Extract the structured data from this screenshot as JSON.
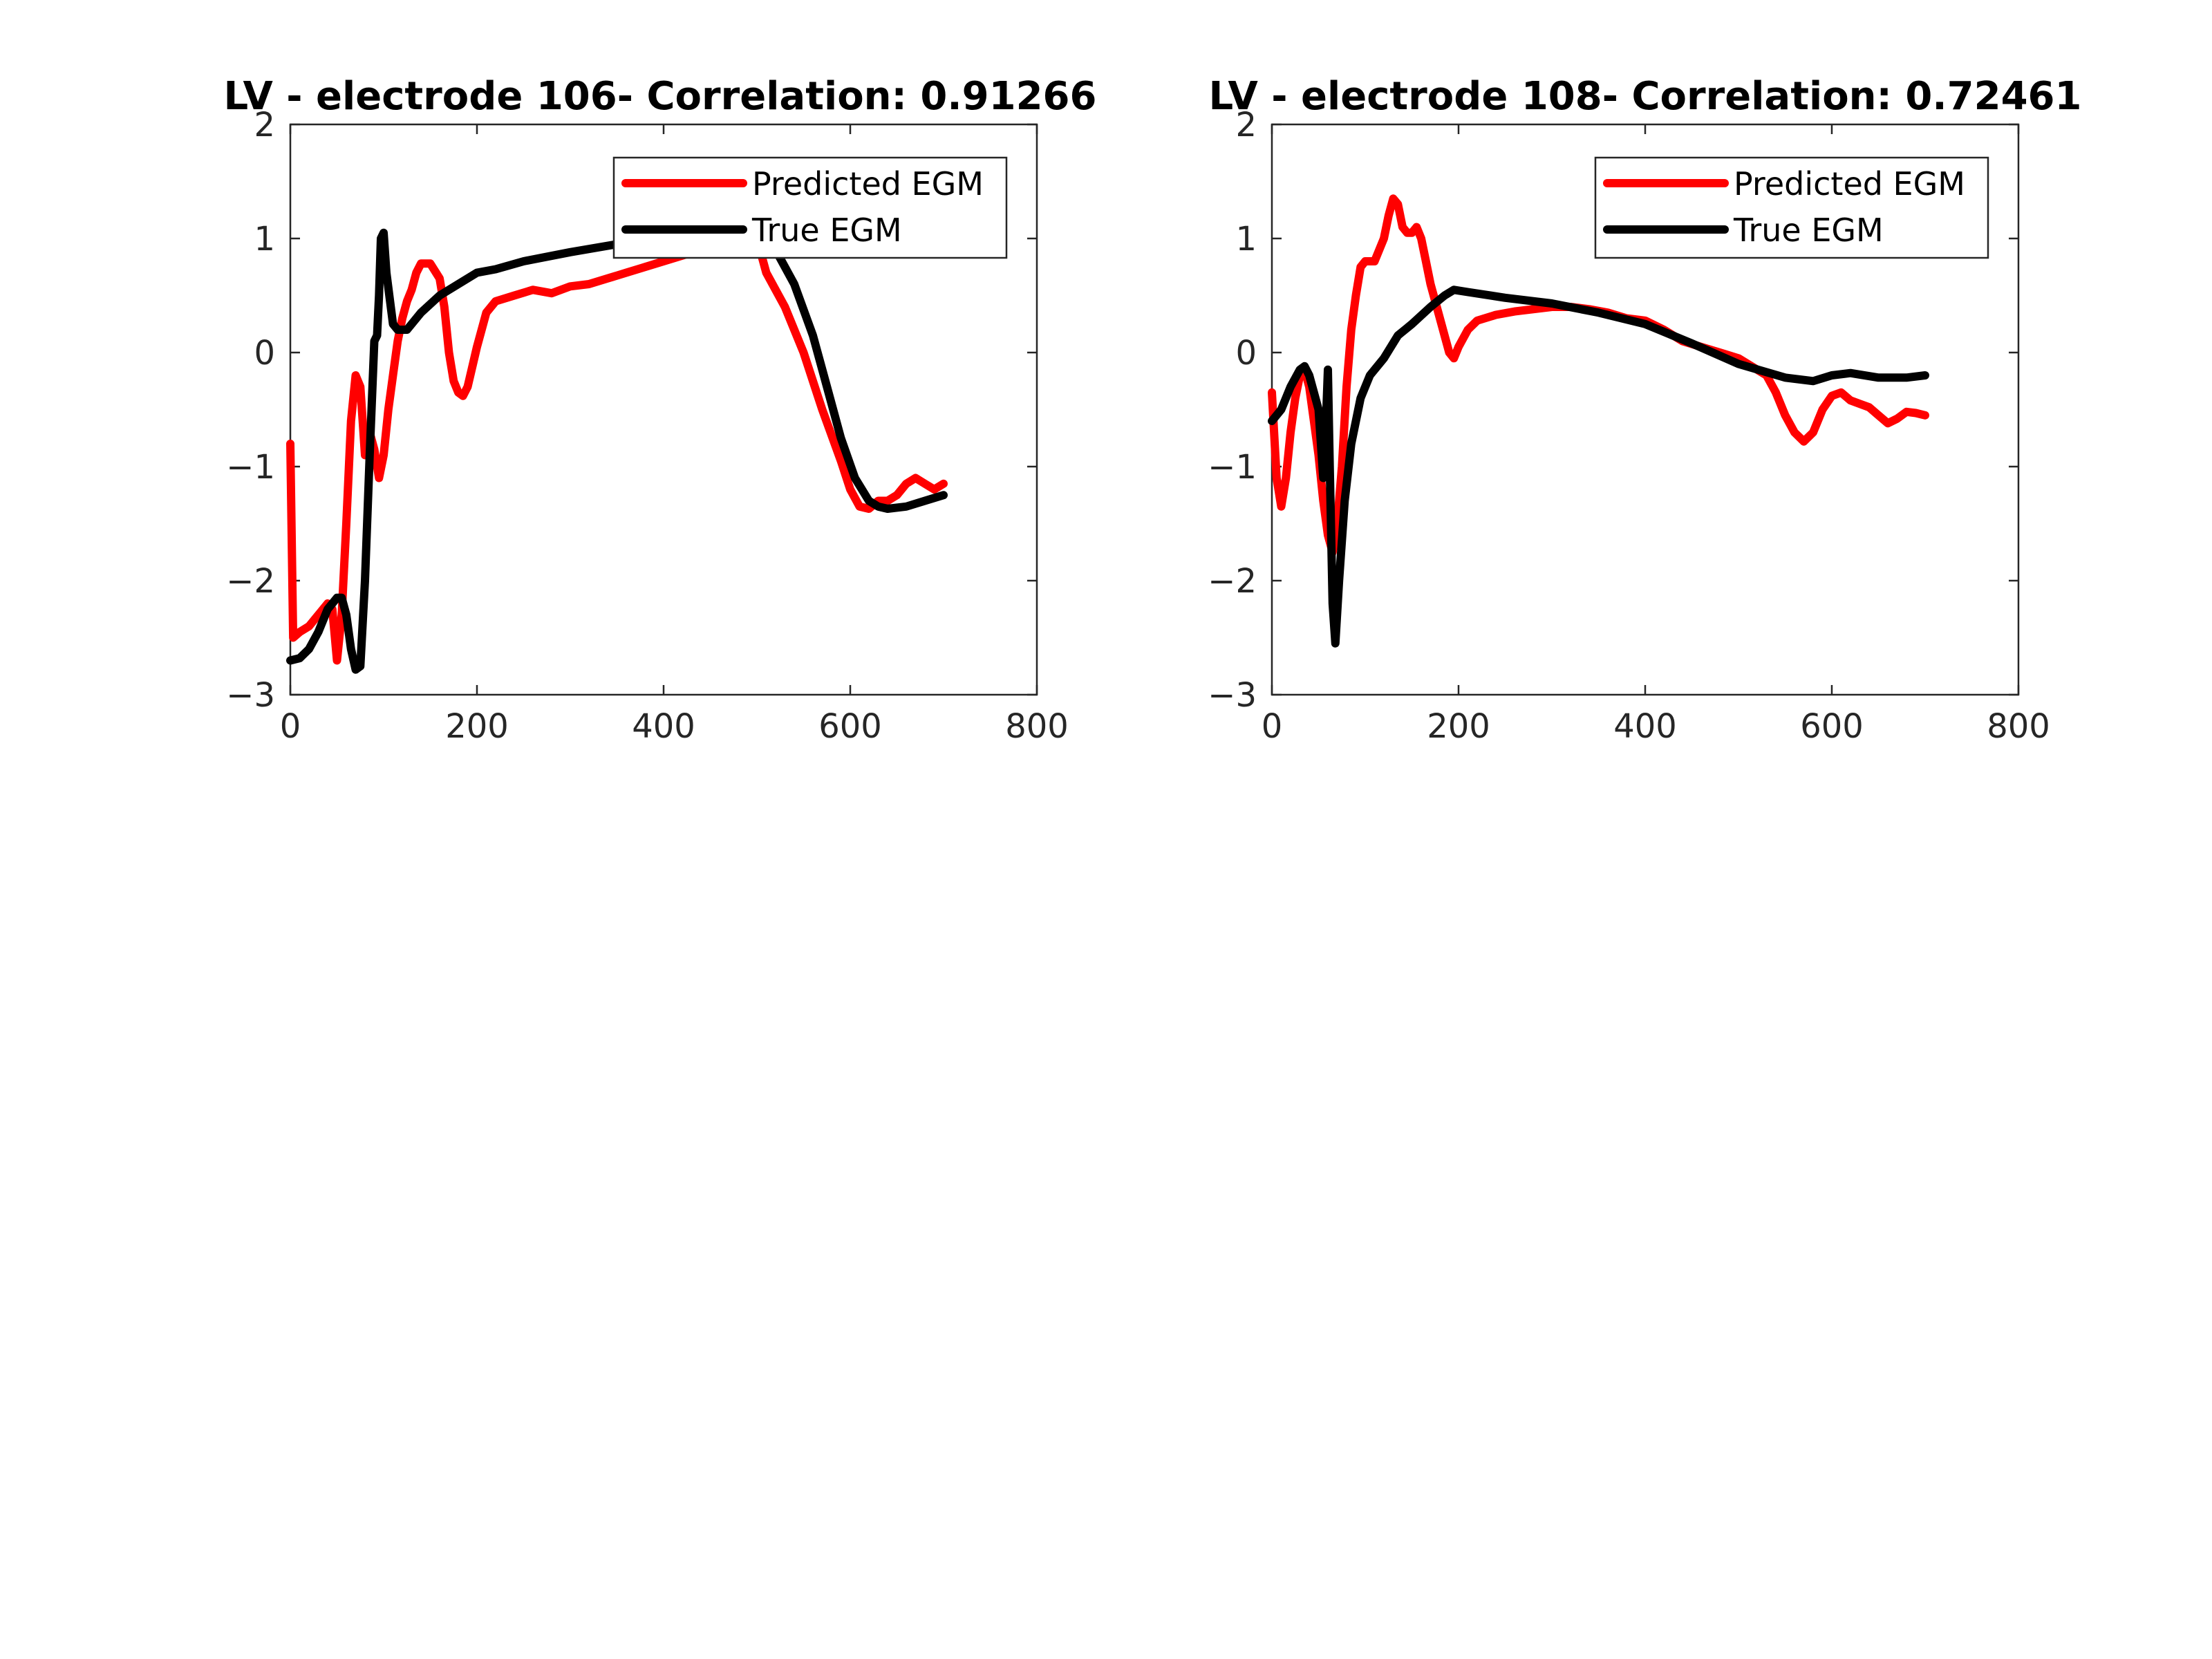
{
  "chart_data": [
    {
      "type": "line",
      "title": "LV - electrode 106- Correlation: 0.91266",
      "xlabel": "",
      "ylabel": "",
      "xlim": [
        0,
        800
      ],
      "ylim": [
        -3,
        2
      ],
      "xticks": [
        0,
        200,
        400,
        600,
        800
      ],
      "yticks": [
        -3,
        -2,
        -1,
        0,
        1,
        2
      ],
      "legend_position": "top-right",
      "series": [
        {
          "name": "Predicted EGM",
          "color": "#ff0000",
          "points": [
            [
              0,
              -0.8
            ],
            [
              3,
              -2.5
            ],
            [
              10,
              -2.45
            ],
            [
              20,
              -2.4
            ],
            [
              30,
              -2.3
            ],
            [
              40,
              -2.2
            ],
            [
              45,
              -2.25
            ],
            [
              50,
              -2.7
            ],
            [
              55,
              -2.3
            ],
            [
              60,
              -1.5
            ],
            [
              65,
              -0.6
            ],
            [
              70,
              -0.2
            ],
            [
              75,
              -0.3
            ],
            [
              80,
              -0.9
            ],
            [
              85,
              -0.7
            ],
            [
              90,
              -0.85
            ],
            [
              95,
              -1.1
            ],
            [
              100,
              -0.9
            ],
            [
              105,
              -0.5
            ],
            [
              110,
              -0.2
            ],
            [
              115,
              0.1
            ],
            [
              120,
              0.3
            ],
            [
              125,
              0.45
            ],
            [
              130,
              0.55
            ],
            [
              135,
              0.7
            ],
            [
              140,
              0.78
            ],
            [
              150,
              0.78
            ],
            [
              160,
              0.65
            ],
            [
              165,
              0.4
            ],
            [
              170,
              0.0
            ],
            [
              175,
              -0.25
            ],
            [
              180,
              -0.35
            ],
            [
              185,
              -0.38
            ],
            [
              190,
              -0.3
            ],
            [
              200,
              0.05
            ],
            [
              210,
              0.35
            ],
            [
              220,
              0.45
            ],
            [
              240,
              0.5
            ],
            [
              260,
              0.55
            ],
            [
              280,
              0.52
            ],
            [
              300,
              0.58
            ],
            [
              320,
              0.6
            ],
            [
              340,
              0.65
            ],
            [
              360,
              0.7
            ],
            [
              380,
              0.75
            ],
            [
              400,
              0.8
            ],
            [
              420,
              0.85
            ],
            [
              440,
              0.9
            ],
            [
              460,
              0.95
            ],
            [
              480,
              1.05
            ],
            [
              490,
              1.1
            ],
            [
              500,
              1.0
            ],
            [
              510,
              0.7
            ],
            [
              530,
              0.4
            ],
            [
              550,
              0.0
            ],
            [
              570,
              -0.5
            ],
            [
              590,
              -0.95
            ],
            [
              600,
              -1.2
            ],
            [
              610,
              -1.35
            ],
            [
              620,
              -1.37
            ],
            [
              630,
              -1.3
            ],
            [
              640,
              -1.3
            ],
            [
              650,
              -1.25
            ],
            [
              660,
              -1.15
            ],
            [
              670,
              -1.1
            ],
            [
              680,
              -1.15
            ],
            [
              690,
              -1.2
            ],
            [
              700,
              -1.15
            ]
          ]
        },
        {
          "name": "True EGM",
          "color": "#000000",
          "points": [
            [
              0,
              -2.7
            ],
            [
              10,
              -2.68
            ],
            [
              20,
              -2.6
            ],
            [
              30,
              -2.45
            ],
            [
              40,
              -2.25
            ],
            [
              50,
              -2.15
            ],
            [
              55,
              -2.15
            ],
            [
              60,
              -2.3
            ],
            [
              65,
              -2.6
            ],
            [
              70,
              -2.78
            ],
            [
              75,
              -2.75
            ],
            [
              80,
              -2.0
            ],
            [
              85,
              -0.9
            ],
            [
              90,
              0.1
            ],
            [
              93,
              0.15
            ],
            [
              95,
              0.5
            ],
            [
              97,
              1.0
            ],
            [
              100,
              1.05
            ],
            [
              103,
              0.7
            ],
            [
              110,
              0.25
            ],
            [
              115,
              0.2
            ],
            [
              125,
              0.2
            ],
            [
              140,
              0.35
            ],
            [
              160,
              0.5
            ],
            [
              180,
              0.6
            ],
            [
              200,
              0.7
            ],
            [
              220,
              0.73
            ],
            [
              250,
              0.8
            ],
            [
              300,
              0.88
            ],
            [
              350,
              0.95
            ],
            [
              400,
              1.0
            ],
            [
              450,
              1.02
            ],
            [
              500,
              1.05
            ],
            [
              520,
              0.9
            ],
            [
              540,
              0.6
            ],
            [
              560,
              0.15
            ],
            [
              575,
              -0.3
            ],
            [
              590,
              -0.75
            ],
            [
              605,
              -1.1
            ],
            [
              620,
              -1.3
            ],
            [
              630,
              -1.35
            ],
            [
              640,
              -1.37
            ],
            [
              660,
              -1.35
            ],
            [
              680,
              -1.3
            ],
            [
              700,
              -1.25
            ]
          ]
        }
      ]
    },
    {
      "type": "line",
      "title": "LV - electrode 108- Correlation: 0.72461",
      "xlabel": "",
      "ylabel": "",
      "xlim": [
        0,
        800
      ],
      "ylim": [
        -3,
        2
      ],
      "xticks": [
        0,
        200,
        400,
        600,
        800
      ],
      "yticks": [
        -3,
        -2,
        -1,
        0,
        1,
        2
      ],
      "legend_position": "top-right",
      "series": [
        {
          "name": "Predicted EGM",
          "color": "#ff0000",
          "points": [
            [
              0,
              -0.35
            ],
            [
              5,
              -1.1
            ],
            [
              10,
              -1.35
            ],
            [
              15,
              -1.1
            ],
            [
              20,
              -0.7
            ],
            [
              25,
              -0.4
            ],
            [
              30,
              -0.2
            ],
            [
              35,
              -0.15
            ],
            [
              40,
              -0.3
            ],
            [
              45,
              -0.6
            ],
            [
              50,
              -0.9
            ],
            [
              55,
              -1.3
            ],
            [
              60,
              -1.6
            ],
            [
              65,
              -1.75
            ],
            [
              70,
              -1.5
            ],
            [
              75,
              -1.0
            ],
            [
              80,
              -0.3
            ],
            [
              85,
              0.2
            ],
            [
              90,
              0.5
            ],
            [
              95,
              0.75
            ],
            [
              100,
              0.8
            ],
            [
              110,
              0.8
            ],
            [
              120,
              1.0
            ],
            [
              125,
              1.2
            ],
            [
              130,
              1.35
            ],
            [
              135,
              1.3
            ],
            [
              140,
              1.1
            ],
            [
              145,
              1.05
            ],
            [
              150,
              1.05
            ],
            [
              155,
              1.1
            ],
            [
              160,
              1.0
            ],
            [
              165,
              0.8
            ],
            [
              170,
              0.6
            ],
            [
              180,
              0.3
            ],
            [
              190,
              0.0
            ],
            [
              195,
              -0.05
            ],
            [
              200,
              0.05
            ],
            [
              210,
              0.2
            ],
            [
              220,
              0.28
            ],
            [
              240,
              0.33
            ],
            [
              260,
              0.36
            ],
            [
              280,
              0.38
            ],
            [
              300,
              0.4
            ],
            [
              320,
              0.4
            ],
            [
              340,
              0.38
            ],
            [
              360,
              0.35
            ],
            [
              380,
              0.3
            ],
            [
              400,
              0.28
            ],
            [
              420,
              0.2
            ],
            [
              440,
              0.1
            ],
            [
              460,
              0.05
            ],
            [
              480,
              0.0
            ],
            [
              500,
              -0.05
            ],
            [
              520,
              -0.15
            ],
            [
              530,
              -0.2
            ],
            [
              540,
              -0.35
            ],
            [
              550,
              -0.55
            ],
            [
              560,
              -0.7
            ],
            [
              570,
              -0.78
            ],
            [
              580,
              -0.7
            ],
            [
              590,
              -0.5
            ],
            [
              600,
              -0.38
            ],
            [
              610,
              -0.35
            ],
            [
              620,
              -0.42
            ],
            [
              630,
              -0.45
            ],
            [
              640,
              -0.48
            ],
            [
              650,
              -0.55
            ],
            [
              660,
              -0.62
            ],
            [
              670,
              -0.58
            ],
            [
              680,
              -0.52
            ],
            [
              690,
              -0.53
            ],
            [
              700,
              -0.55
            ]
          ]
        },
        {
          "name": "True EGM",
          "color": "#000000",
          "points": [
            [
              0,
              -0.6
            ],
            [
              10,
              -0.5
            ],
            [
              20,
              -0.3
            ],
            [
              30,
              -0.15
            ],
            [
              35,
              -0.12
            ],
            [
              40,
              -0.2
            ],
            [
              45,
              -0.35
            ],
            [
              50,
              -0.5
            ],
            [
              55,
              -1.1
            ],
            [
              58,
              -0.6
            ],
            [
              60,
              -0.15
            ],
            [
              62,
              -1.0
            ],
            [
              65,
              -2.2
            ],
            [
              68,
              -2.55
            ],
            [
              72,
              -2.0
            ],
            [
              78,
              -1.3
            ],
            [
              85,
              -0.8
            ],
            [
              95,
              -0.4
            ],
            [
              105,
              -0.2
            ],
            [
              120,
              -0.05
            ],
            [
              135,
              0.15
            ],
            [
              150,
              0.25
            ],
            [
              170,
              0.4
            ],
            [
              185,
              0.5
            ],
            [
              195,
              0.55
            ],
            [
              210,
              0.53
            ],
            [
              250,
              0.48
            ],
            [
              300,
              0.43
            ],
            [
              350,
              0.35
            ],
            [
              400,
              0.25
            ],
            [
              450,
              0.08
            ],
            [
              500,
              -0.1
            ],
            [
              550,
              -0.22
            ],
            [
              580,
              -0.25
            ],
            [
              600,
              -0.2
            ],
            [
              620,
              -0.18
            ],
            [
              650,
              -0.22
            ],
            [
              680,
              -0.22
            ],
            [
              700,
              -0.2
            ]
          ]
        }
      ]
    }
  ]
}
